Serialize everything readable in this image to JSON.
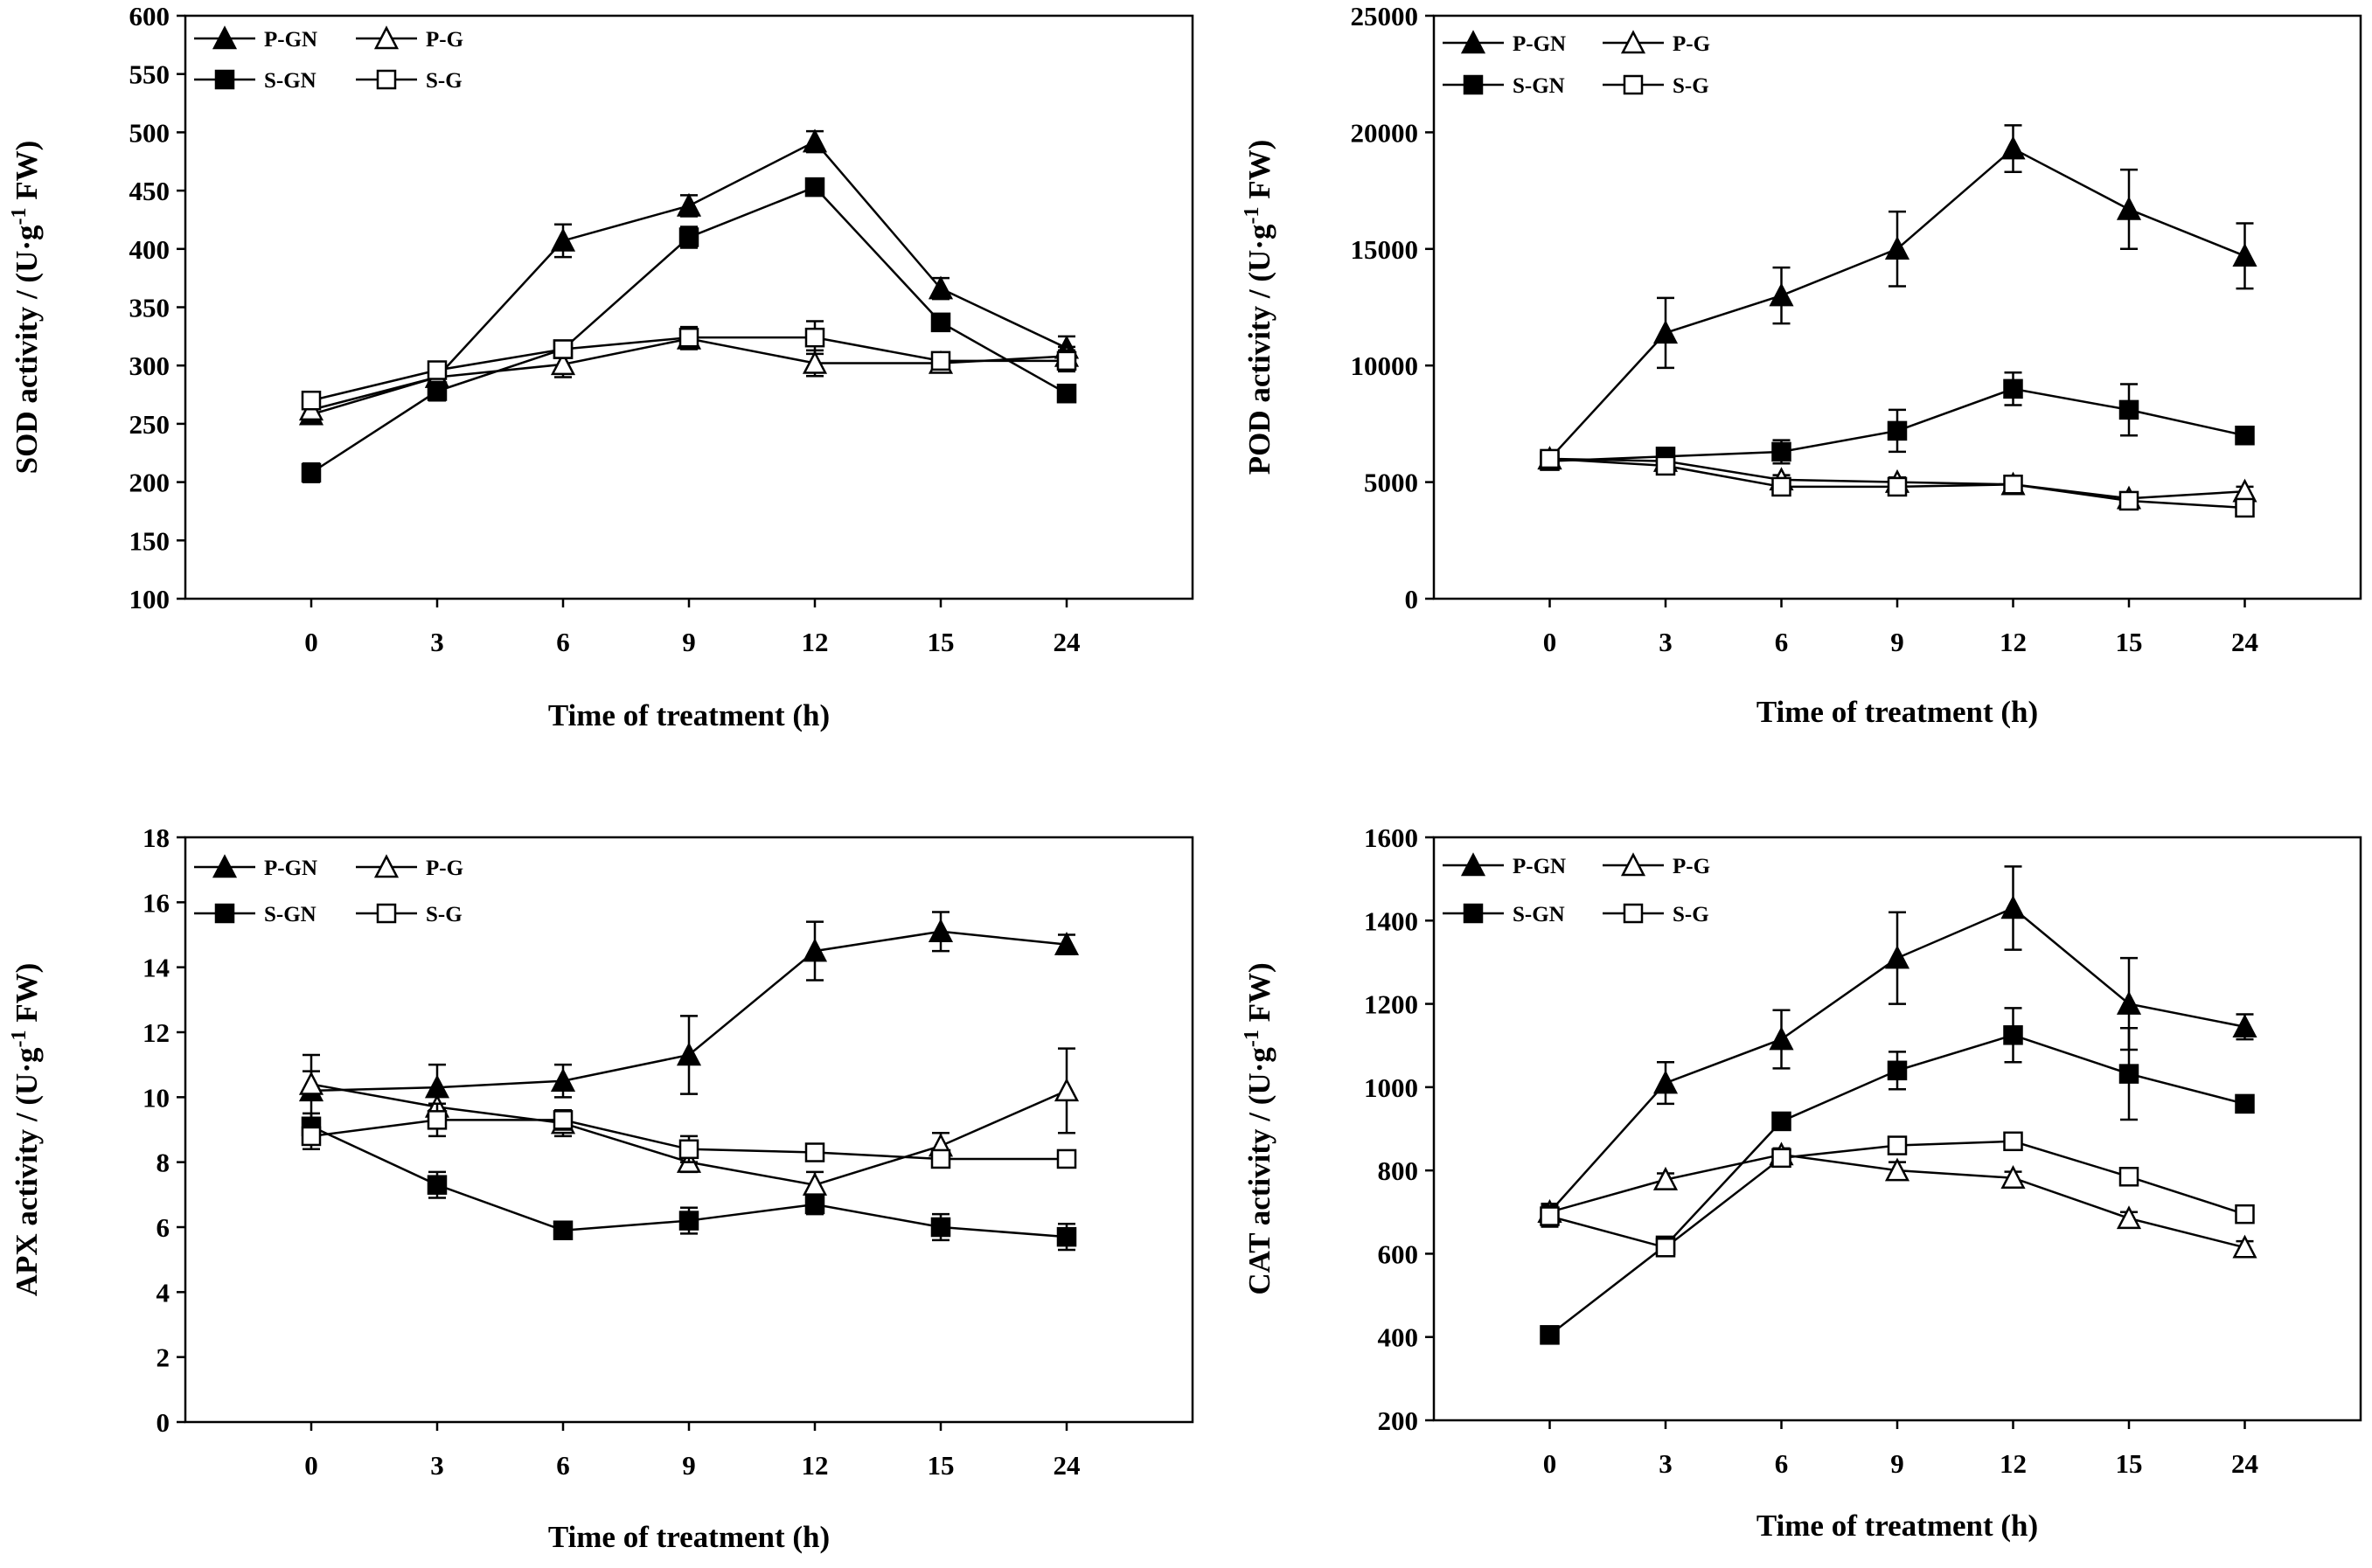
{
  "chart_data": [
    {
      "type": "line",
      "panel": "top-left",
      "xlabel": "Time of treatment (h)",
      "ylabel": "SOD activity / (U·g⁻¹ FW)",
      "ylabel_parts": [
        "SOD activity / (U·g",
        "-1",
        " FW)"
      ],
      "categories": [
        "0",
        "3",
        "6",
        "9",
        "12",
        "15",
        "24"
      ],
      "ylim": [
        100,
        600
      ],
      "yticks": [
        100,
        150,
        200,
        250,
        300,
        350,
        400,
        450,
        500,
        550,
        600
      ],
      "legend": [
        "P-GN",
        "P-G",
        "S-GN",
        "S-G"
      ],
      "series": [
        {
          "name": "P-GN",
          "marker": "triangle-filled",
          "values": [
            258,
            290,
            407,
            437,
            492,
            366,
            315
          ],
          "errors": [
            8,
            8,
            14,
            9,
            9,
            9,
            10
          ]
        },
        {
          "name": "P-G",
          "marker": "triangle-open",
          "values": [
            262,
            290,
            301,
            323,
            302,
            302,
            308
          ],
          "errors": [
            7,
            7,
            11,
            9,
            11,
            6,
            8
          ]
        },
        {
          "name": "S-GN",
          "marker": "square-filled",
          "values": [
            208,
            278,
            314,
            410,
            453,
            337,
            276
          ],
          "errors": [
            8,
            8,
            6,
            9,
            7,
            6,
            6
          ]
        },
        {
          "name": "S-G",
          "marker": "square-open",
          "values": [
            270,
            296,
            314,
            324,
            324,
            304,
            304
          ],
          "errors": [
            6,
            6,
            7,
            9,
            14,
            7,
            9
          ]
        }
      ]
    },
    {
      "type": "line",
      "panel": "top-right",
      "xlabel": "Time of treatment (h)",
      "ylabel": "POD activity / (U·g⁻¹ FW)",
      "ylabel_parts": [
        "POD activity / (U·g",
        "-1",
        " FW)"
      ],
      "categories": [
        "0",
        "3",
        "6",
        "9",
        "12",
        "15",
        "24"
      ],
      "ylim": [
        0,
        25000
      ],
      "yticks": [
        0,
        5000,
        10000,
        15000,
        20000,
        25000
      ],
      "legend": [
        "P-GN",
        "P-G",
        "S-GN",
        "S-G"
      ],
      "series": [
        {
          "name": "P-GN",
          "marker": "triangle-filled",
          "values": [
            6000,
            11400,
            13000,
            15000,
            19300,
            16700,
            14700
          ],
          "errors": [
            200,
            1500,
            1200,
            1600,
            1000,
            1700,
            1400
          ]
        },
        {
          "name": "P-G",
          "marker": "triangle-open",
          "values": [
            6000,
            5900,
            5100,
            5000,
            4900,
            4300,
            4600
          ],
          "errors": [
            200,
            200,
            200,
            200,
            200,
            200,
            200
          ]
        },
        {
          "name": "S-GN",
          "marker": "square-filled",
          "values": [
            5900,
            6100,
            6300,
            7200,
            9000,
            8100,
            7000
          ],
          "errors": [
            200,
            200,
            500,
            900,
            700,
            1100,
            200
          ]
        },
        {
          "name": "S-G",
          "marker": "square-open",
          "values": [
            6000,
            5700,
            4800,
            4800,
            4900,
            4200,
            3900
          ],
          "errors": [
            200,
            200,
            200,
            200,
            200,
            200,
            200
          ]
        }
      ]
    },
    {
      "type": "line",
      "panel": "bottom-left",
      "xlabel": "Time of treatment (h)",
      "ylabel": "APX activity / (U·g⁻¹ FW)",
      "ylabel_parts": [
        "APX activity / (U·g",
        "-1",
        " FW)"
      ],
      "categories": [
        "0",
        "3",
        "6",
        "9",
        "12",
        "15",
        "24"
      ],
      "ylim": [
        0,
        18
      ],
      "yticks": [
        0,
        2,
        4,
        6,
        8,
        10,
        12,
        14,
        16,
        18
      ],
      "legend": [
        "P-GN",
        "P-G",
        "S-GN",
        "S-G"
      ],
      "series": [
        {
          "name": "P-GN",
          "marker": "triangle-filled",
          "values": [
            10.2,
            10.3,
            10.5,
            11.3,
            14.5,
            15.1,
            14.7
          ],
          "errors": [
            1.1,
            0.7,
            0.5,
            1.2,
            0.9,
            0.6,
            0.3
          ]
        },
        {
          "name": "P-G",
          "marker": "triangle-open",
          "values": [
            10.4,
            9.7,
            9.2,
            8.0,
            7.3,
            8.5,
            10.2
          ],
          "errors": [
            0.4,
            0.4,
            0.4,
            0.3,
            0.4,
            0.4,
            1.3
          ]
        },
        {
          "name": "S-GN",
          "marker": "square-filled",
          "values": [
            9.1,
            7.3,
            5.9,
            6.2,
            6.7,
            6.0,
            5.7
          ],
          "errors": [
            0.4,
            0.4,
            0.1,
            0.4,
            0.3,
            0.4,
            0.4
          ]
        },
        {
          "name": "S-G",
          "marker": "square-open",
          "values": [
            8.8,
            9.3,
            9.3,
            8.4,
            8.3,
            8.1,
            8.1
          ],
          "errors": [
            0.4,
            0.5,
            0.3,
            0.4,
            0.2,
            0.2,
            0.1
          ]
        }
      ]
    },
    {
      "type": "line",
      "panel": "bottom-right",
      "xlabel": "Time of treatment (h)",
      "ylabel": "CAT activity / (U·g⁻¹ FW)",
      "ylabel_parts": [
        "CAT activity / (U·g",
        "-1",
        " FW)"
      ],
      "categories": [
        "0",
        "3",
        "6",
        "9",
        "12",
        "15",
        "24"
      ],
      "ylim": [
        200,
        1600
      ],
      "yticks": [
        200,
        400,
        600,
        800,
        1000,
        1200,
        1400,
        1600
      ],
      "legend": [
        "P-GN",
        "P-G",
        "S-GN",
        "S-G"
      ],
      "series": [
        {
          "name": "P-GN",
          "marker": "triangle-filled",
          "values": [
            700,
            1010,
            1115,
            1310,
            1430,
            1200,
            1145
          ],
          "errors": [
            20,
            50,
            70,
            110,
            100,
            110,
            30
          ]
        },
        {
          "name": "P-G",
          "marker": "triangle-open",
          "values": [
            700,
            778,
            838,
            800,
            782,
            685,
            615
          ],
          "errors": [
            15,
            15,
            15,
            20,
            15,
            15,
            15
          ]
        },
        {
          "name": "S-GN",
          "marker": "square-filled",
          "values": [
            405,
            620,
            918,
            1040,
            1125,
            1032,
            960
          ],
          "errors": [
            10,
            15,
            15,
            45,
            65,
            110,
            15
          ]
        },
        {
          "name": "S-G",
          "marker": "square-open",
          "values": [
            690,
            615,
            830,
            860,
            870,
            785,
            695
          ],
          "errors": [
            25,
            15,
            15,
            15,
            15,
            15,
            15
          ]
        }
      ]
    }
  ]
}
